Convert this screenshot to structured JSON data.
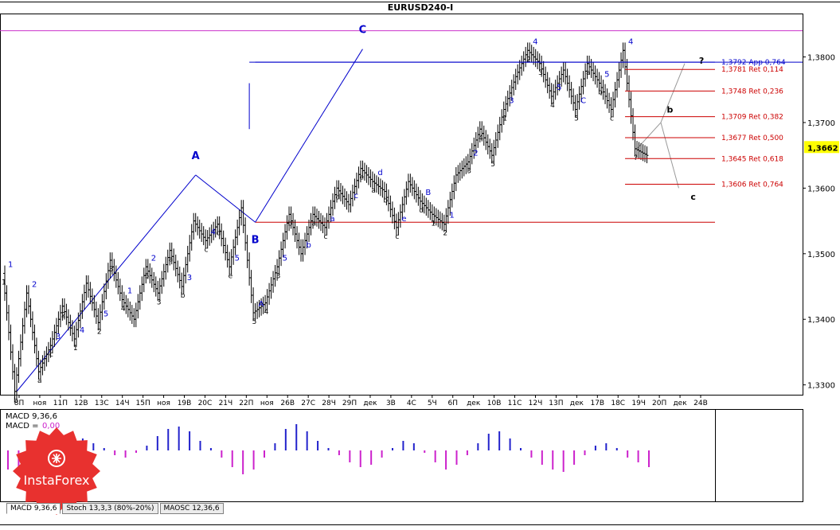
{
  "window": {
    "title": "EURUSD240-I"
  },
  "chart_data": {
    "type": "candlestick",
    "title": "EURUSD240-I",
    "ylim": [
      1.3285,
      1.3865
    ],
    "y_ticks": [
      1.33,
      1.34,
      1.35,
      1.36,
      1.37,
      1.38
    ],
    "y_tick_labels": [
      "1,3300",
      "1,3400",
      "1,3500",
      "1,3600",
      "1,3700",
      "1,3800"
    ],
    "current_price": 1.3662,
    "current_price_label": "1,3662",
    "x_tick_labels": [
      "8П",
      "ноя",
      "11П",
      "12В",
      "13С",
      "14Ч",
      "15П",
      "ноя",
      "19В",
      "20С",
      "21Ч",
      "22П",
      "ноя",
      "26В",
      "27С",
      "28Ч",
      "29П",
      "дек",
      "3В",
      "4С",
      "5Ч",
      "6П",
      "дек",
      "10В",
      "11С",
      "12Ч",
      "13П",
      "дек",
      "17В",
      "18С",
      "19Ч",
      "20П",
      "дек",
      "24В"
    ],
    "price_path": [
      [
        0,
        1.347
      ],
      [
        1,
        1.329
      ],
      [
        2,
        1.344
      ],
      [
        3,
        1.332
      ],
      [
        4,
        1.336
      ],
      [
        5,
        1.342
      ],
      [
        6,
        1.337
      ],
      [
        7,
        1.3455
      ],
      [
        8,
        1.3395
      ],
      [
        9,
        1.349
      ],
      [
        10,
        1.343
      ],
      [
        11,
        1.34
      ],
      [
        12,
        1.348
      ],
      [
        13,
        1.344
      ],
      [
        14,
        1.3505
      ],
      [
        15,
        1.345
      ],
      [
        16,
        1.355
      ],
      [
        17,
        1.352
      ],
      [
        18,
        1.3545
      ],
      [
        19,
        1.348
      ],
      [
        20,
        1.357
      ],
      [
        21,
        1.341
      ],
      [
        22,
        1.3425
      ],
      [
        23,
        1.348
      ],
      [
        24,
        1.356
      ],
      [
        25,
        1.35
      ],
      [
        26,
        1.356
      ],
      [
        27,
        1.354
      ],
      [
        28,
        1.36
      ],
      [
        29,
        1.3575
      ],
      [
        30,
        1.363
      ],
      [
        31,
        1.361
      ],
      [
        32,
        1.3595
      ],
      [
        33,
        1.354
      ],
      [
        34,
        1.361
      ],
      [
        35,
        1.358
      ],
      [
        36,
        1.356
      ],
      [
        37,
        1.3545
      ],
      [
        38,
        1.362
      ],
      [
        39,
        1.364
      ],
      [
        40,
        1.369
      ],
      [
        41,
        1.365
      ],
      [
        42,
        1.372
      ],
      [
        43,
        1.377
      ],
      [
        44,
        1.381
      ],
      [
        45,
        1.379
      ],
      [
        46,
        1.374
      ],
      [
        47,
        1.378
      ],
      [
        48,
        1.372
      ],
      [
        49,
        1.379
      ],
      [
        50,
        1.376
      ],
      [
        51,
        1.372
      ],
      [
        52,
        1.381
      ],
      [
        53,
        1.366
      ],
      [
        54,
        1.365
      ]
    ],
    "extreme_points": [
      {
        "label": "A",
        "x": 16,
        "y": 1.362
      },
      {
        "label": "B",
        "x": 21,
        "y": 1.3548
      },
      {
        "label": "C",
        "x": 30,
        "y": 1.3812
      }
    ],
    "fib_levels": [
      {
        "label": "1,3792 App 0,764",
        "value": 1.3792,
        "color": "#0000cc"
      },
      {
        "label": "1,3781 Ret 0,114",
        "value": 1.3781,
        "color": "#cc0000"
      },
      {
        "label": "1,3748 Ret 0,236",
        "value": 1.3748,
        "color": "#cc0000"
      },
      {
        "label": "1,3709 Ret 0,382",
        "value": 1.3709,
        "color": "#cc0000"
      },
      {
        "label": "1,3677 Ret 0,500",
        "value": 1.3677,
        "color": "#cc0000"
      },
      {
        "label": "1,3645 Ret 0,618",
        "value": 1.3645,
        "color": "#cc0000"
      },
      {
        "label": "1,3606 Ret 0,764",
        "value": 1.3606,
        "color": "#cc0000"
      }
    ],
    "horizontal_lines": [
      {
        "value": 1.384,
        "color": "#cc33cc"
      },
      {
        "value": 1.3548,
        "color": "#cc0000"
      }
    ],
    "wave_labels_blue": [
      "1",
      "2",
      "3",
      "4",
      "5",
      "1",
      "2",
      "3",
      "4",
      "5",
      "A",
      "5",
      "b",
      "a",
      "c",
      "d",
      "e",
      "B",
      "1",
      "2",
      "3",
      "4",
      "5",
      "C",
      "5",
      "4"
    ],
    "wave_labels_black": [
      "1",
      "b",
      "a",
      "c",
      "2",
      "1",
      "2",
      "3",
      "4",
      "5",
      "3",
      "a",
      "b",
      "c",
      "d",
      "e",
      "5",
      "4",
      "3",
      "b",
      "a",
      "c",
      "d",
      "e",
      "a",
      "b",
      "c",
      "d",
      "1",
      "2",
      "3",
      "4",
      "5",
      "1",
      "2",
      "3",
      "4",
      "5",
      "a",
      "b",
      "c",
      "?"
    ],
    "projection_labels": [
      "b",
      "c",
      "?"
    ],
    "macd": {
      "label_line1": "MACD 9,36,6",
      "label_line2_prefix": "MACD = ",
      "label_line2_value": "0,00",
      "values": [
        -0.8,
        -0.9,
        -0.7,
        -0.4,
        -0.1,
        0.2,
        0.4,
        0.5,
        0.3,
        0.1,
        -0.2,
        -0.3,
        -0.1,
        0.2,
        0.6,
        0.9,
        1.0,
        0.8,
        0.4,
        0.1,
        -0.3,
        -0.7,
        -1.0,
        -0.8,
        -0.3,
        0.3,
        0.9,
        1.1,
        0.8,
        0.4,
        0.1,
        -0.2,
        -0.5,
        -0.7,
        -0.6,
        -0.3,
        0.1,
        0.4,
        0.3,
        -0.1,
        -0.5,
        -0.8,
        -0.6,
        -0.2,
        0.3,
        0.7,
        0.8,
        0.5,
        0.1,
        -0.3,
        -0.6,
        -0.8,
        -0.9,
        -0.6,
        -0.2,
        0.2,
        0.3,
        0.1,
        -0.3,
        -0.5,
        -0.7
      ]
    },
    "grid": true,
    "legend": "none"
  },
  "bottom_tabs": [
    {
      "label": "MACD 9,36,6",
      "active": true
    },
    {
      "label": "Stoch 13,3,3 (80%-20%)",
      "active": false
    },
    {
      "label": "MAOSC 12,36,6",
      "active": false
    }
  ],
  "logo": {
    "text": "InstaForex",
    "color": "#e8312f"
  },
  "colors": {
    "price": "#000000",
    "wave_blue": "#0000cc",
    "fib_red": "#cc0000",
    "macd_pos": "#2222cc",
    "macd_neg": "#cc22cc",
    "current_price_bg": "#ffff00"
  }
}
